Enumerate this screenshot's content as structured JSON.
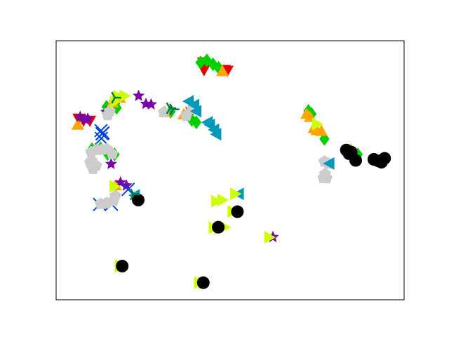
{
  "chart_data": {
    "type": "scatter",
    "title": "",
    "xlabel": "",
    "ylabel": "",
    "xlim": [
      0,
      100
    ],
    "ylim": [
      0,
      100
    ],
    "grid": false,
    "legend": "none",
    "axis_ticks": false,
    "colors": {
      "red": "#e00000",
      "green": "#00d000",
      "orange": "#ffa500",
      "purple": "#7a00a8",
      "blue": "#0044dd",
      "gray": "#cccccc",
      "cyan": "#0099bb",
      "yellow": "#ccff00",
      "black": "#000000",
      "darkgreen": "#007a3d"
    },
    "series": [
      {
        "color": "red",
        "marker": "triangle-down",
        "points": [
          [
            42.3,
            91.6
          ],
          [
            42.5,
            88.7
          ],
          [
            48.4,
            88.7
          ],
          [
            49.2,
            88.4
          ],
          [
            6.5,
            69.9
          ],
          [
            7.9,
            69.2
          ],
          [
            9.7,
            69.1
          ],
          [
            38.9,
            72.5
          ],
          [
            17.0,
            75.1
          ]
        ]
      },
      {
        "color": "green",
        "marker": "diamond",
        "points": [
          [
            41.5,
            91.6
          ],
          [
            43.3,
            92.4
          ],
          [
            45.1,
            90.9
          ],
          [
            46.7,
            89.5
          ],
          [
            14.5,
            74.5
          ],
          [
            17.4,
            74.1
          ],
          [
            39.0,
            69.4
          ],
          [
            72.5,
            72.9
          ],
          [
            73.4,
            71.7
          ],
          [
            77.1,
            62.1
          ],
          [
            86.7,
            56.1
          ],
          [
            10.3,
            58.1
          ],
          [
            12.8,
            58.5
          ],
          [
            14.8,
            56.3
          ],
          [
            16.8,
            56.1
          ],
          [
            32.9,
            72.6
          ],
          [
            40.3,
            68.5
          ]
        ]
      },
      {
        "color": "orange",
        "marker": "triangle-up",
        "points": [
          [
            47.8,
            88.3
          ],
          [
            16.2,
            76.2
          ],
          [
            18.3,
            78.0
          ],
          [
            31.3,
            72.6
          ],
          [
            36.7,
            71.6
          ],
          [
            72.0,
            71.8
          ],
          [
            73.0,
            70.6
          ],
          [
            74.1,
            66.3
          ],
          [
            74.9,
            65.5
          ],
          [
            76.2,
            65.2
          ],
          [
            6.2,
            67.6
          ],
          [
            17.1,
            44.2
          ],
          [
            84.7,
            57.9
          ]
        ]
      },
      {
        "color": "purple",
        "marker": "star",
        "points": [
          [
            6.9,
            70.6
          ],
          [
            8.3,
            69.6
          ],
          [
            9.1,
            69.9
          ],
          [
            23.7,
            78.7
          ],
          [
            25.8,
            75.6
          ],
          [
            27.3,
            75.4
          ],
          [
            15.8,
            52.4
          ],
          [
            18.5,
            45.3
          ],
          [
            20.2,
            44.1
          ],
          [
            62.3,
            24.2
          ],
          [
            14.4,
            72.5
          ]
        ]
      },
      {
        "color": "blue",
        "marker": "x",
        "points": [
          [
            12.9,
            65.3
          ],
          [
            13.2,
            64.1
          ],
          [
            13.5,
            64.4
          ],
          [
            13.0,
            62.3
          ],
          [
            20.7,
            42.6
          ],
          [
            12.5,
            36.8
          ],
          [
            15.9,
            36.9
          ]
        ]
      },
      {
        "color": "gray",
        "marker": "pentagon",
        "points": [
          [
            14.8,
            71.3
          ],
          [
            15.4,
            72.8
          ],
          [
            31.0,
            72.4
          ],
          [
            37.4,
            71.0
          ],
          [
            39.1,
            73.7
          ],
          [
            10.1,
            57.0
          ],
          [
            11.7,
            57.9
          ],
          [
            13.2,
            58.0
          ],
          [
            14.6,
            58.2
          ],
          [
            16.1,
            56.3
          ],
          [
            10.2,
            53.6
          ],
          [
            9.8,
            52.9
          ],
          [
            11.5,
            51.8
          ],
          [
            10.6,
            50.5
          ],
          [
            16.5,
            38.2
          ],
          [
            17.0,
            40.1
          ],
          [
            14.5,
            37.3
          ],
          [
            12.8,
            37.0
          ],
          [
            77.1,
            53.4
          ],
          [
            78.2,
            52.6
          ],
          [
            77.3,
            48.6
          ],
          [
            76.8,
            47.0
          ],
          [
            77.7,
            47.0
          ]
        ]
      },
      {
        "color": "cyan",
        "marker": "triangle-left",
        "points": [
          [
            38.1,
            76.6
          ],
          [
            39.7,
            75.2
          ],
          [
            40.3,
            72.8
          ],
          [
            43.5,
            68.5
          ],
          [
            44.2,
            67.5
          ],
          [
            45.4,
            65.6
          ],
          [
            46.0,
            63.9
          ],
          [
            22.6,
            40.3
          ],
          [
            52.5,
            40.9
          ],
          [
            78.5,
            52.6
          ]
        ]
      },
      {
        "color": "yellow",
        "marker": "triangle-right",
        "points": [
          [
            17.8,
            78.5
          ],
          [
            19.7,
            78.7
          ],
          [
            16.9,
            76.4
          ],
          [
            46.0,
            38.0
          ],
          [
            47.8,
            38.5
          ],
          [
            51.5,
            40.9
          ],
          [
            50.7,
            34.1
          ],
          [
            45.3,
            27.8
          ],
          [
            46.9,
            27.5
          ],
          [
            48.5,
            28.0
          ],
          [
            61.3,
            24.1
          ],
          [
            18.3,
            13.0
          ],
          [
            18.7,
            13.0
          ],
          [
            41.1,
            6.6
          ],
          [
            42.2,
            6.6
          ],
          [
            75.0,
            67.8
          ],
          [
            16.8,
            43.8
          ]
        ]
      },
      {
        "color": "black",
        "marker": "circle",
        "points": [
          [
            23.6,
            38.5
          ],
          [
            52.1,
            34.0
          ],
          [
            46.6,
            28.0
          ],
          [
            19.0,
            13.0
          ],
          [
            42.3,
            6.6
          ],
          [
            83.4,
            57.8
          ],
          [
            86.1,
            53.8
          ],
          [
            91.3,
            54.2
          ],
          [
            92.6,
            53.6
          ],
          [
            93.5,
            53.1
          ],
          [
            94.4,
            54.6
          ],
          [
            84.8,
            57.0
          ],
          [
            84.2,
            56.4
          ]
        ]
      },
      {
        "color": "darkgreen",
        "marker": "tri-right",
        "points": [
          [
            33.6,
            73.5
          ],
          [
            32.7,
            73.9
          ],
          [
            22.3,
            40.7
          ],
          [
            16.9,
            78.0
          ]
        ]
      }
    ]
  }
}
